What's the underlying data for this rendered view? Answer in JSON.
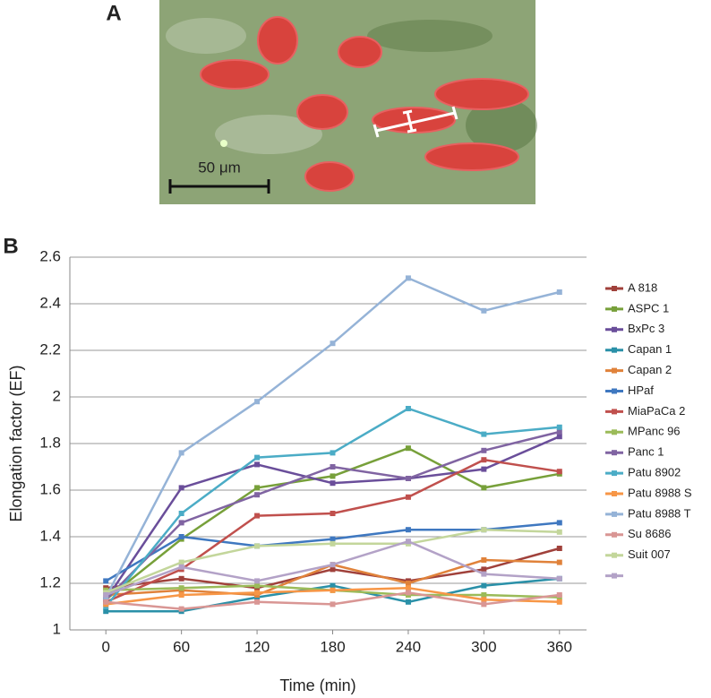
{
  "panel_a": {
    "label": "A",
    "scale_label": "50 μm"
  },
  "chart_data": {
    "type": "line",
    "panel_label": "B",
    "x_label": "Time (min)",
    "y_label": "Elongation factor (EF)",
    "x": [
      0,
      60,
      120,
      180,
      240,
      300,
      360
    ],
    "xlim": [
      -30,
      390
    ],
    "xticks": [
      0,
      60,
      120,
      180,
      240,
      300,
      360
    ],
    "ylim": [
      1,
      2.6
    ],
    "yticks": [
      1,
      1.2,
      1.4,
      1.6,
      1.8,
      2,
      2.2,
      2.4,
      2.6
    ],
    "grid": true,
    "legend": "right",
    "series": [
      {
        "name": "A 818",
        "color": "#a0413b",
        "values": [
          1.18,
          1.22,
          1.18,
          1.26,
          1.21,
          1.26,
          1.35
        ]
      },
      {
        "name": "ASPC 1",
        "color": "#77a03a",
        "values": [
          1.13,
          1.39,
          1.61,
          1.66,
          1.78,
          1.61,
          1.67
        ]
      },
      {
        "name": "BxPc 3",
        "color": "#6a4e9a",
        "values": [
          1.13,
          1.61,
          1.71,
          1.63,
          1.65,
          1.69,
          1.83
        ]
      },
      {
        "name": "Capan 1",
        "color": "#2a90a8",
        "values": [
          1.08,
          1.08,
          1.14,
          1.19,
          1.12,
          1.19,
          1.22
        ]
      },
      {
        "name": "Capan 2",
        "color": "#e0823a",
        "values": [
          1.15,
          1.17,
          1.15,
          1.28,
          1.2,
          1.3,
          1.29
        ]
      },
      {
        "name": "HPaf",
        "color": "#3f78c0",
        "values": [
          1.21,
          1.4,
          1.36,
          1.39,
          1.43,
          1.43,
          1.46
        ]
      },
      {
        "name": "MiaPaCa 2",
        "color": "#c0504d",
        "values": [
          1.12,
          1.26,
          1.49,
          1.5,
          1.57,
          1.73,
          1.68
        ]
      },
      {
        "name": "MPanc 96",
        "color": "#9bbb59",
        "values": [
          1.17,
          1.18,
          1.19,
          1.17,
          1.15,
          1.15,
          1.14
        ]
      },
      {
        "name": "Panc 1",
        "color": "#8064a2",
        "values": [
          1.13,
          1.46,
          1.58,
          1.7,
          1.65,
          1.77,
          1.85
        ]
      },
      {
        "name": "Patu 8902",
        "color": "#4bacc6",
        "values": [
          1.1,
          1.5,
          1.74,
          1.76,
          1.95,
          1.84,
          1.87
        ]
      },
      {
        "name": "Patu 8988 S",
        "color": "#f79646",
        "values": [
          1.11,
          1.15,
          1.16,
          1.17,
          1.18,
          1.13,
          1.12
        ]
      },
      {
        "name": "Patu 8988 T",
        "color": "#95b3d7",
        "values": [
          1.14,
          1.76,
          1.98,
          2.23,
          2.51,
          2.37,
          2.45
        ]
      },
      {
        "name": "Su 8686",
        "color": "#d99694",
        "values": [
          1.12,
          1.09,
          1.12,
          1.11,
          1.16,
          1.11,
          1.15
        ]
      },
      {
        "name": "Suit 007",
        "color": "#c3d69b",
        "values": [
          1.16,
          1.29,
          1.36,
          1.37,
          1.37,
          1.43,
          1.42
        ]
      },
      {
        "name": null,
        "color": "#b3a2c7",
        "values": [
          1.15,
          1.27,
          1.21,
          1.28,
          1.38,
          1.24,
          1.22
        ]
      }
    ]
  }
}
